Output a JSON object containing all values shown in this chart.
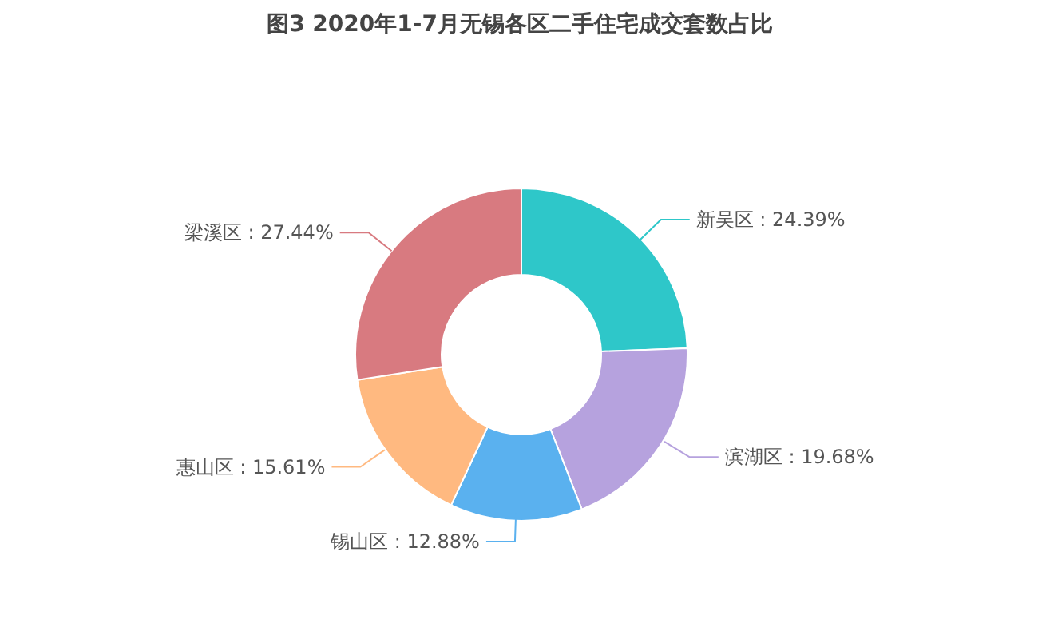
{
  "chart_data": {
    "type": "donut",
    "title": "图3 2020年1-7月无锡各区二手住宅成交套数占比",
    "categories": [
      "新吴区",
      "滨湖区",
      "锡山区",
      "惠山区",
      "梁溪区"
    ],
    "values": [
      24.39,
      19.68,
      12.88,
      15.61,
      27.44
    ],
    "value_labels": [
      "24.39%",
      "19.68%",
      "12.88%",
      "15.61%",
      "27.44%"
    ],
    "colors": [
      "#2ec7c9",
      "#b6a2de",
      "#5ab1ef",
      "#ffb980",
      "#d87a80"
    ]
  }
}
